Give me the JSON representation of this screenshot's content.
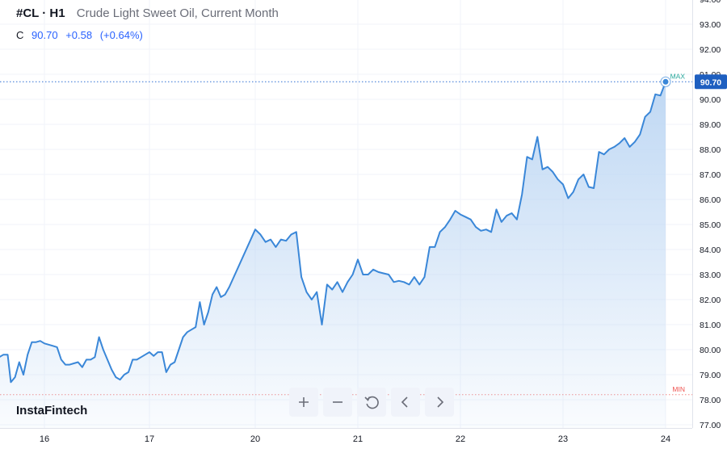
{
  "header": {
    "symbol": "#CL · H1",
    "name": "Crude Light Sweet Oil, Current Month",
    "ohlc_label": "C",
    "close": "90.70",
    "change": "+0.58",
    "change_pct": "(+0.64%)"
  },
  "brand": "InstaFintech",
  "toolbar": {
    "zoom_in_icon": "plus-icon",
    "zoom_out_icon": "minus-icon",
    "reset_icon": "reset-icon",
    "scroll_left_icon": "chevron-left-icon",
    "scroll_right_icon": "chevron-right-icon"
  },
  "colors": {
    "line": "#3a87d8",
    "area_top": "#bcd6f3",
    "max_line": "#2e6fd4",
    "max_label": "#26a69a",
    "min_line": "#ef5350",
    "price_badge": "#1e5fc0"
  },
  "chart_data": {
    "type": "area",
    "yaxis": {
      "ticks": [
        "77.00",
        "78.00",
        "79.00",
        "80.00",
        "81.00",
        "82.00",
        "83.00",
        "84.00",
        "85.00",
        "86.00",
        "87.00",
        "88.00",
        "89.00",
        "90.00",
        "91.00",
        "92.00",
        "93.00",
        "94.00"
      ],
      "range": [
        77.0,
        94.0
      ]
    },
    "xaxis": {
      "ticks": [
        {
          "label": "16",
          "x": 16
        },
        {
          "label": "17",
          "x": 17
        },
        {
          "label": "20",
          "x": 20
        },
        {
          "label": "21",
          "x": 21
        },
        {
          "label": "22",
          "x": 22
        },
        {
          "label": "23",
          "x": 23
        },
        {
          "label": "24",
          "x": 24
        }
      ],
      "range": [
        15.57,
        24.28
      ]
    },
    "last_price_label": "90.70",
    "max": {
      "label": "MAX",
      "value": 90.7
    },
    "min": {
      "label": "MIN",
      "value": 78.2
    },
    "series": [
      {
        "points": [
          [
            15.57,
            79.7
          ],
          [
            15.61,
            79.8
          ],
          [
            15.65,
            79.8
          ],
          [
            15.68,
            78.7
          ],
          [
            15.72,
            78.9
          ],
          [
            15.76,
            79.5
          ],
          [
            15.8,
            79.0
          ],
          [
            15.84,
            79.8
          ],
          [
            15.88,
            80.3
          ],
          [
            15.92,
            80.3
          ],
          [
            15.96,
            80.35
          ],
          [
            16.0,
            80.25
          ],
          [
            16.04,
            80.2
          ],
          [
            16.08,
            80.15
          ],
          [
            16.12,
            80.1
          ],
          [
            16.16,
            79.6
          ],
          [
            16.2,
            79.4
          ],
          [
            16.24,
            79.4
          ],
          [
            16.28,
            79.45
          ],
          [
            16.32,
            79.5
          ],
          [
            16.36,
            79.3
          ],
          [
            16.4,
            79.6
          ],
          [
            16.44,
            79.6
          ],
          [
            16.48,
            79.7
          ],
          [
            16.52,
            80.5
          ],
          [
            16.56,
            80.0
          ],
          [
            16.6,
            79.6
          ],
          [
            16.64,
            79.2
          ],
          [
            16.68,
            78.9
          ],
          [
            16.72,
            78.8
          ],
          [
            16.76,
            79.0
          ],
          [
            16.8,
            79.1
          ],
          [
            16.84,
            79.6
          ],
          [
            16.88,
            79.6
          ],
          [
            16.92,
            79.7
          ],
          [
            16.96,
            79.8
          ],
          [
            17.0,
            79.9
          ],
          [
            17.04,
            79.75
          ],
          [
            17.08,
            79.9
          ],
          [
            17.12,
            79.9
          ],
          [
            17.16,
            79.1
          ],
          [
            17.2,
            79.4
          ],
          [
            17.24,
            79.5
          ],
          [
            17.28,
            80.0
          ],
          [
            17.32,
            80.5
          ],
          [
            17.36,
            80.7
          ],
          [
            17.4,
            80.8
          ],
          [
            17.44,
            80.9
          ],
          [
            17.48,
            81.9
          ],
          [
            17.52,
            81.0
          ],
          [
            17.56,
            81.5
          ],
          [
            17.6,
            82.2
          ],
          [
            17.64,
            82.5
          ],
          [
            17.68,
            82.1
          ],
          [
            17.72,
            82.2
          ],
          [
            17.76,
            82.5
          ],
          [
            20.0,
            84.8
          ],
          [
            20.05,
            84.6
          ],
          [
            20.1,
            84.3
          ],
          [
            20.15,
            84.4
          ],
          [
            20.2,
            84.1
          ],
          [
            20.25,
            84.4
          ],
          [
            20.3,
            84.35
          ],
          [
            20.35,
            84.6
          ],
          [
            20.4,
            84.7
          ],
          [
            20.45,
            82.9
          ],
          [
            20.5,
            82.3
          ],
          [
            20.55,
            82.0
          ],
          [
            20.6,
            82.3
          ],
          [
            20.65,
            81.0
          ],
          [
            20.7,
            82.6
          ],
          [
            20.75,
            82.4
          ],
          [
            20.8,
            82.7
          ],
          [
            20.85,
            82.3
          ],
          [
            20.9,
            82.7
          ],
          [
            20.95,
            83.0
          ],
          [
            21.0,
            83.6
          ],
          [
            21.05,
            83.0
          ],
          [
            21.1,
            83.0
          ],
          [
            21.15,
            83.2
          ],
          [
            21.2,
            83.1
          ],
          [
            21.25,
            83.05
          ],
          [
            21.3,
            83.0
          ],
          [
            21.35,
            82.7
          ],
          [
            21.4,
            82.75
          ],
          [
            21.45,
            82.7
          ],
          [
            21.5,
            82.6
          ],
          [
            21.55,
            82.9
          ],
          [
            21.6,
            82.6
          ],
          [
            21.65,
            82.9
          ],
          [
            21.7,
            84.1
          ],
          [
            21.75,
            84.1
          ],
          [
            21.8,
            84.7
          ],
          [
            21.85,
            84.9
          ],
          [
            21.9,
            85.2
          ],
          [
            21.95,
            85.55
          ],
          [
            22.0,
            85.4
          ],
          [
            22.05,
            85.3
          ],
          [
            22.1,
            85.2
          ],
          [
            22.15,
            84.9
          ],
          [
            22.2,
            84.75
          ],
          [
            22.25,
            84.8
          ],
          [
            22.3,
            84.7
          ],
          [
            22.35,
            85.6
          ],
          [
            22.4,
            85.1
          ],
          [
            22.45,
            85.35
          ],
          [
            22.5,
            85.45
          ],
          [
            22.55,
            85.2
          ],
          [
            22.6,
            86.2
          ],
          [
            22.65,
            87.7
          ],
          [
            22.7,
            87.6
          ],
          [
            22.75,
            88.5
          ],
          [
            22.8,
            87.2
          ],
          [
            22.85,
            87.3
          ],
          [
            22.9,
            87.1
          ],
          [
            22.95,
            86.8
          ],
          [
            23.0,
            86.6
          ],
          [
            23.05,
            86.05
          ],
          [
            23.1,
            86.3
          ],
          [
            23.15,
            86.8
          ],
          [
            23.2,
            87.0
          ],
          [
            23.25,
            86.5
          ],
          [
            23.3,
            86.45
          ],
          [
            23.35,
            87.9
          ],
          [
            23.4,
            87.8
          ],
          [
            23.45,
            88.0
          ],
          [
            23.5,
            88.1
          ],
          [
            23.55,
            88.25
          ],
          [
            23.6,
            88.45
          ],
          [
            23.65,
            88.1
          ],
          [
            23.7,
            88.3
          ],
          [
            23.75,
            88.6
          ],
          [
            23.8,
            89.3
          ],
          [
            23.85,
            89.5
          ],
          [
            23.9,
            90.2
          ],
          [
            23.95,
            90.15
          ],
          [
            24.0,
            90.7
          ]
        ]
      }
    ]
  }
}
